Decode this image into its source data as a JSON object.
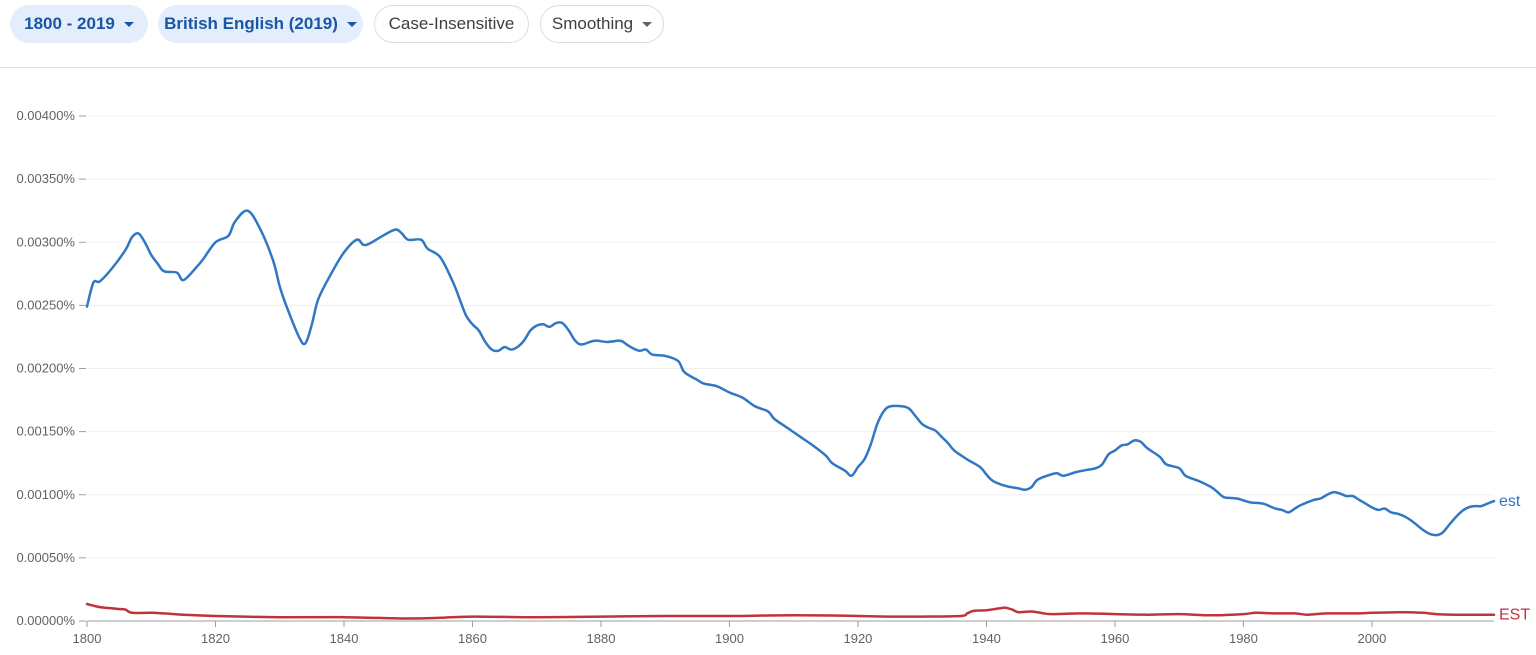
{
  "toolbar": {
    "range_label": "1800 - 2019",
    "corpus_label": "British English (2019)",
    "case_label": "Case-Insensitive",
    "smoothing_label": "Smoothing"
  },
  "colors": {
    "est": "#3077c4",
    "EST": "#c1333c",
    "grid": "#f0f0f0",
    "axis": "#9e9e9e"
  },
  "chart_data": {
    "type": "line",
    "title": "",
    "xlabel": "",
    "ylabel": "",
    "xlim": [
      1800,
      2019
    ],
    "ylim": [
      0,
      0.004
    ],
    "x_ticks": [
      1800,
      1820,
      1840,
      1860,
      1880,
      1900,
      1920,
      1940,
      1960,
      1980,
      2000
    ],
    "x_tick_labels": [
      "1800",
      "1820",
      "1840",
      "1860",
      "1880",
      "1900",
      "1920",
      "1940",
      "1960",
      "1980",
      "2000"
    ],
    "y_ticks": [
      0,
      0.0005,
      0.001,
      0.0015,
      0.002,
      0.0025,
      0.003,
      0.0035,
      0.004
    ],
    "y_tick_labels": [
      "0.00000%",
      "0.00050%",
      "0.00100%",
      "0.00150%",
      "0.00200%",
      "0.00250%",
      "0.00300%",
      "0.00350%",
      "0.00400%"
    ],
    "series": [
      {
        "name": "est",
        "color_key": "est",
        "points": [
          [
            1800,
            0.00249
          ],
          [
            1801,
            0.00268
          ],
          [
            1802,
            0.00269
          ],
          [
            1804,
            0.0028
          ],
          [
            1806,
            0.00294
          ],
          [
            1807,
            0.00304
          ],
          [
            1808,
            0.00307
          ],
          [
            1809,
            0.003
          ],
          [
            1810,
            0.0029
          ],
          [
            1811,
            0.00283
          ],
          [
            1812,
            0.00277
          ],
          [
            1814,
            0.00276
          ],
          [
            1815,
            0.0027
          ],
          [
            1817,
            0.0028
          ],
          [
            1818,
            0.00286
          ],
          [
            1820,
            0.003
          ],
          [
            1822,
            0.00305
          ],
          [
            1823,
            0.00316
          ],
          [
            1825,
            0.00325
          ],
          [
            1827,
            0.0031
          ],
          [
            1829,
            0.00285
          ],
          [
            1830,
            0.00265
          ],
          [
            1831,
            0.0025
          ],
          [
            1833,
            0.00225
          ],
          [
            1834,
            0.0022
          ],
          [
            1835,
            0.00235
          ],
          [
            1836,
            0.00255
          ],
          [
            1838,
            0.00275
          ],
          [
            1840,
            0.00292
          ],
          [
            1842,
            0.00302
          ],
          [
            1843,
            0.00298
          ],
          [
            1844,
            0.00299
          ],
          [
            1846,
            0.00305
          ],
          [
            1848,
            0.0031
          ],
          [
            1849,
            0.00307
          ],
          [
            1850,
            0.00302
          ],
          [
            1852,
            0.00302
          ],
          [
            1853,
            0.00295
          ],
          [
            1855,
            0.00288
          ],
          [
            1857,
            0.00268
          ],
          [
            1858,
            0.00255
          ],
          [
            1859,
            0.00242
          ],
          [
            1860,
            0.00235
          ],
          [
            1861,
            0.0023
          ],
          [
            1862,
            0.00221
          ],
          [
            1863,
            0.00215
          ],
          [
            1864,
            0.00214
          ],
          [
            1865,
            0.00217
          ],
          [
            1866,
            0.00215
          ],
          [
            1867,
            0.00217
          ],
          [
            1868,
            0.00222
          ],
          [
            1869,
            0.0023
          ],
          [
            1870,
            0.00234
          ],
          [
            1871,
            0.00235
          ],
          [
            1872,
            0.00233
          ],
          [
            1873,
            0.00236
          ],
          [
            1874,
            0.00236
          ],
          [
            1875,
            0.0023
          ],
          [
            1876,
            0.00222
          ],
          [
            1877,
            0.00219
          ],
          [
            1879,
            0.00222
          ],
          [
            1881,
            0.00221
          ],
          [
            1883,
            0.00222
          ],
          [
            1884,
            0.00219
          ],
          [
            1885,
            0.00216
          ],
          [
            1886,
            0.00214
          ],
          [
            1887,
            0.00215
          ],
          [
            1888,
            0.00211
          ],
          [
            1890,
            0.0021
          ],
          [
            1892,
            0.00206
          ],
          [
            1893,
            0.00197
          ],
          [
            1895,
            0.00191
          ],
          [
            1896,
            0.00188
          ],
          [
            1898,
            0.00186
          ],
          [
            1900,
            0.00181
          ],
          [
            1902,
            0.00177
          ],
          [
            1904,
            0.0017
          ],
          [
            1906,
            0.00166
          ],
          [
            1907,
            0.0016
          ],
          [
            1909,
            0.00153
          ],
          [
            1911,
            0.00146
          ],
          [
            1913,
            0.00139
          ],
          [
            1915,
            0.00131
          ],
          [
            1916,
            0.00125
          ],
          [
            1918,
            0.00119
          ],
          [
            1919,
            0.00115
          ],
          [
            1920,
            0.00122
          ],
          [
            1921,
            0.00128
          ],
          [
            1922,
            0.0014
          ],
          [
            1923,
            0.00156
          ],
          [
            1924,
            0.00166
          ],
          [
            1925,
            0.0017
          ],
          [
            1927,
            0.0017
          ],
          [
            1928,
            0.00168
          ],
          [
            1929,
            0.00162
          ],
          [
            1930,
            0.00156
          ],
          [
            1931,
            0.00153
          ],
          [
            1932,
            0.00151
          ],
          [
            1933,
            0.00146
          ],
          [
            1934,
            0.00141
          ],
          [
            1935,
            0.00135
          ],
          [
            1937,
            0.00128
          ],
          [
            1939,
            0.00122
          ],
          [
            1940,
            0.00116
          ],
          [
            1941,
            0.00111
          ],
          [
            1943,
            0.00107
          ],
          [
            1945,
            0.00105
          ],
          [
            1946,
            0.00104
          ],
          [
            1947,
            0.00106
          ],
          [
            1948,
            0.00112
          ],
          [
            1950,
            0.00116
          ],
          [
            1951,
            0.00117
          ],
          [
            1952,
            0.00115
          ],
          [
            1954,
            0.00118
          ],
          [
            1956,
            0.0012
          ],
          [
            1957,
            0.00121
          ],
          [
            1958,
            0.00124
          ],
          [
            1959,
            0.00132
          ],
          [
            1960,
            0.00135
          ],
          [
            1961,
            0.00139
          ],
          [
            1962,
            0.0014
          ],
          [
            1963,
            0.00143
          ],
          [
            1964,
            0.00142
          ],
          [
            1965,
            0.00137
          ],
          [
            1967,
            0.0013
          ],
          [
            1968,
            0.00124
          ],
          [
            1970,
            0.00121
          ],
          [
            1971,
            0.00115
          ],
          [
            1973,
            0.00111
          ],
          [
            1975,
            0.00106
          ],
          [
            1976,
            0.00102
          ],
          [
            1977,
            0.00098
          ],
          [
            1979,
            0.00097
          ],
          [
            1981,
            0.00094
          ],
          [
            1983,
            0.00093
          ],
          [
            1985,
            0.00089
          ],
          [
            1986,
            0.00088
          ],
          [
            1987,
            0.00086
          ],
          [
            1988,
            0.00089
          ],
          [
            1989,
            0.00092
          ],
          [
            1991,
            0.00096
          ],
          [
            1992,
            0.00097
          ],
          [
            1993,
            0.001
          ],
          [
            1994,
            0.00102
          ],
          [
            1995,
            0.00101
          ],
          [
            1996,
            0.00099
          ],
          [
            1997,
            0.00099
          ],
          [
            1998,
            0.00096
          ],
          [
            1999,
            0.00093
          ],
          [
            2000,
            0.0009
          ],
          [
            2001,
            0.00088
          ],
          [
            2002,
            0.00089
          ],
          [
            2003,
            0.00086
          ],
          [
            2004,
            0.00085
          ],
          [
            2005,
            0.00083
          ],
          [
            2006,
            0.0008
          ],
          [
            2007,
            0.00076
          ],
          [
            2008,
            0.00072
          ],
          [
            2009,
            0.00069
          ],
          [
            2010,
            0.00068
          ],
          [
            2011,
            0.0007
          ],
          [
            2012,
            0.00076
          ],
          [
            2013,
            0.00082
          ],
          [
            2014,
            0.00087
          ],
          [
            2015,
            0.0009
          ],
          [
            2016,
            0.00091
          ],
          [
            2017,
            0.00091
          ],
          [
            2018,
            0.00093
          ],
          [
            2019,
            0.00095
          ]
        ]
      },
      {
        "name": "EST",
        "color_key": "EST",
        "points": [
          [
            1800,
            0.000135
          ],
          [
            1802,
            0.00011
          ],
          [
            1804,
            0.0001
          ],
          [
            1805,
            9.5e-05
          ],
          [
            1806,
            9e-05
          ],
          [
            1807,
            6.5e-05
          ],
          [
            1810,
            6.5e-05
          ],
          [
            1812,
            6e-05
          ],
          [
            1815,
            5e-05
          ],
          [
            1820,
            4e-05
          ],
          [
            1830,
            3e-05
          ],
          [
            1840,
            3e-05
          ],
          [
            1850,
            2e-05
          ],
          [
            1855,
            2.5e-05
          ],
          [
            1860,
            3.5e-05
          ],
          [
            1870,
            3e-05
          ],
          [
            1880,
            3.5e-05
          ],
          [
            1890,
            4e-05
          ],
          [
            1900,
            4e-05
          ],
          [
            1910,
            4.5e-05
          ],
          [
            1920,
            4e-05
          ],
          [
            1925,
            3.5e-05
          ],
          [
            1930,
            3.5e-05
          ],
          [
            1936,
            4e-05
          ],
          [
            1937,
            6e-05
          ],
          [
            1938,
            8e-05
          ],
          [
            1940,
            8.5e-05
          ],
          [
            1942,
            0.0001
          ],
          [
            1943,
            0.000105
          ],
          [
            1944,
            9e-05
          ],
          [
            1945,
            7e-05
          ],
          [
            1947,
            7.5e-05
          ],
          [
            1949,
            6e-05
          ],
          [
            1950,
            5.5e-05
          ],
          [
            1955,
            6e-05
          ],
          [
            1960,
            5.5e-05
          ],
          [
            1965,
            5e-05
          ],
          [
            1970,
            5.5e-05
          ],
          [
            1975,
            4.5e-05
          ],
          [
            1980,
            5.5e-05
          ],
          [
            1982,
            6.5e-05
          ],
          [
            1985,
            6e-05
          ],
          [
            1988,
            6e-05
          ],
          [
            1990,
            5e-05
          ],
          [
            1993,
            6e-05
          ],
          [
            1998,
            6e-05
          ],
          [
            2000,
            6.5e-05
          ],
          [
            2005,
            7e-05
          ],
          [
            2008,
            6.5e-05
          ],
          [
            2010,
            5.5e-05
          ],
          [
            2013,
            5e-05
          ],
          [
            2016,
            5e-05
          ],
          [
            2019,
            5e-05
          ]
        ]
      }
    ]
  }
}
